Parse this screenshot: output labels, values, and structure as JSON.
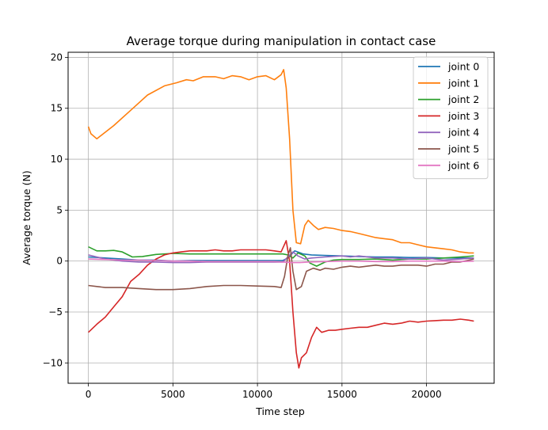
{
  "chart_data": {
    "type": "line",
    "title": "Average torque during manipulation in contact case",
    "xlabel": "Time step",
    "ylabel": "Average torque (N)",
    "xlim": [
      -1200,
      24000
    ],
    "ylim": [
      -12,
      20.5
    ],
    "xticks": [
      0,
      5000,
      10000,
      15000,
      20000
    ],
    "yticks": [
      -10,
      -5,
      0,
      5,
      10,
      15,
      20
    ],
    "xtick_labels": [
      "0",
      "5000",
      "10000",
      "15000",
      "20000"
    ],
    "ytick_labels": [
      "−10",
      "−5",
      "0",
      "5",
      "10",
      "15",
      "20"
    ],
    "grid": true,
    "legend_position": "top-right",
    "series": [
      {
        "name": "joint 0",
        "color": "#1f77b4",
        "points": [
          [
            0,
            0.4
          ],
          [
            1000,
            0.3
          ],
          [
            2000,
            0.2
          ],
          [
            3000,
            0.1
          ],
          [
            4000,
            0.1
          ],
          [
            5000,
            0.0
          ],
          [
            6000,
            0.05
          ],
          [
            7000,
            0.05
          ],
          [
            8000,
            0.05
          ],
          [
            9000,
            0.05
          ],
          [
            10000,
            0.05
          ],
          [
            11000,
            0.05
          ],
          [
            11500,
            0.05
          ],
          [
            11800,
            0.3
          ],
          [
            12200,
            1.0
          ],
          [
            12700,
            0.7
          ],
          [
            13200,
            0.6
          ],
          [
            14000,
            0.55
          ],
          [
            15000,
            0.5
          ],
          [
            16000,
            0.45
          ],
          [
            17000,
            0.4
          ],
          [
            18000,
            0.4
          ],
          [
            19000,
            0.35
          ],
          [
            20000,
            0.35
          ],
          [
            21000,
            0.3
          ],
          [
            22000,
            0.3
          ],
          [
            22800,
            0.3
          ]
        ]
      },
      {
        "name": "joint 1",
        "color": "#ff7f0e",
        "points": [
          [
            0,
            13.2
          ],
          [
            150,
            12.5
          ],
          [
            500,
            12.0
          ],
          [
            800,
            12.4
          ],
          [
            1500,
            13.3
          ],
          [
            2500,
            14.8
          ],
          [
            3500,
            16.3
          ],
          [
            4500,
            17.2
          ],
          [
            5200,
            17.5
          ],
          [
            5800,
            17.8
          ],
          [
            6200,
            17.7
          ],
          [
            6800,
            18.1
          ],
          [
            7500,
            18.1
          ],
          [
            8000,
            17.9
          ],
          [
            8500,
            18.2
          ],
          [
            9000,
            18.1
          ],
          [
            9500,
            17.8
          ],
          [
            10000,
            18.1
          ],
          [
            10500,
            18.2
          ],
          [
            11000,
            17.8
          ],
          [
            11400,
            18.3
          ],
          [
            11550,
            18.8
          ],
          [
            11700,
            17.0
          ],
          [
            11900,
            12.0
          ],
          [
            12100,
            5.0
          ],
          [
            12300,
            1.8
          ],
          [
            12550,
            1.7
          ],
          [
            12800,
            3.5
          ],
          [
            13000,
            4.0
          ],
          [
            13300,
            3.5
          ],
          [
            13600,
            3.1
          ],
          [
            14000,
            3.3
          ],
          [
            14500,
            3.2
          ],
          [
            15000,
            3.0
          ],
          [
            15500,
            2.9
          ],
          [
            16000,
            2.7
          ],
          [
            16500,
            2.5
          ],
          [
            17000,
            2.3
          ],
          [
            17500,
            2.2
          ],
          [
            18000,
            2.1
          ],
          [
            18500,
            1.8
          ],
          [
            19000,
            1.8
          ],
          [
            19500,
            1.6
          ],
          [
            20000,
            1.4
          ],
          [
            20500,
            1.3
          ],
          [
            21000,
            1.2
          ],
          [
            21500,
            1.1
          ],
          [
            22000,
            0.9
          ],
          [
            22500,
            0.8
          ],
          [
            22800,
            0.8
          ]
        ]
      },
      {
        "name": "joint 2",
        "color": "#2ca02c",
        "points": [
          [
            0,
            1.4
          ],
          [
            500,
            1.0
          ],
          [
            1000,
            1.0
          ],
          [
            1500,
            1.05
          ],
          [
            2000,
            0.9
          ],
          [
            2600,
            0.4
          ],
          [
            3200,
            0.45
          ],
          [
            4000,
            0.65
          ],
          [
            5000,
            0.75
          ],
          [
            6000,
            0.7
          ],
          [
            7000,
            0.7
          ],
          [
            8000,
            0.7
          ],
          [
            9000,
            0.7
          ],
          [
            10000,
            0.7
          ],
          [
            11000,
            0.7
          ],
          [
            11500,
            0.7
          ],
          [
            11800,
            0.6
          ],
          [
            12100,
            0.3
          ],
          [
            12400,
            0.8
          ],
          [
            12800,
            0.5
          ],
          [
            13100,
            -0.2
          ],
          [
            13500,
            -0.5
          ],
          [
            14000,
            -0.1
          ],
          [
            14500,
            0.1
          ],
          [
            15000,
            0.15
          ],
          [
            16000,
            0.15
          ],
          [
            17000,
            0.2
          ],
          [
            18000,
            0.1
          ],
          [
            19000,
            0.2
          ],
          [
            20000,
            0.2
          ],
          [
            21000,
            0.3
          ],
          [
            22000,
            0.4
          ],
          [
            22800,
            0.5
          ]
        ]
      },
      {
        "name": "joint 3",
        "color": "#d62728",
        "points": [
          [
            0,
            -7.0
          ],
          [
            500,
            -6.2
          ],
          [
            1000,
            -5.5
          ],
          [
            1500,
            -4.5
          ],
          [
            2000,
            -3.5
          ],
          [
            2500,
            -2.0
          ],
          [
            3000,
            -1.3
          ],
          [
            3500,
            -0.4
          ],
          [
            4000,
            0.2
          ],
          [
            4500,
            0.6
          ],
          [
            5000,
            0.8
          ],
          [
            5500,
            0.9
          ],
          [
            6000,
            1.0
          ],
          [
            6500,
            1.0
          ],
          [
            7000,
            1.0
          ],
          [
            7500,
            1.1
          ],
          [
            8000,
            1.0
          ],
          [
            8500,
            1.0
          ],
          [
            9000,
            1.1
          ],
          [
            9500,
            1.1
          ],
          [
            10000,
            1.1
          ],
          [
            10500,
            1.1
          ],
          [
            11000,
            1.0
          ],
          [
            11400,
            0.9
          ],
          [
            11700,
            2.0
          ],
          [
            11900,
            0.0
          ],
          [
            12100,
            -5.0
          ],
          [
            12300,
            -9.0
          ],
          [
            12450,
            -10.5
          ],
          [
            12600,
            -9.5
          ],
          [
            12900,
            -9.0
          ],
          [
            13200,
            -7.5
          ],
          [
            13500,
            -6.5
          ],
          [
            13800,
            -7.0
          ],
          [
            14200,
            -6.8
          ],
          [
            14600,
            -6.8
          ],
          [
            15000,
            -6.7
          ],
          [
            15500,
            -6.6
          ],
          [
            16000,
            -6.5
          ],
          [
            16500,
            -6.5
          ],
          [
            17000,
            -6.3
          ],
          [
            17500,
            -6.1
          ],
          [
            18000,
            -6.2
          ],
          [
            18500,
            -6.1
          ],
          [
            19000,
            -5.9
          ],
          [
            19500,
            -6.0
          ],
          [
            20000,
            -5.9
          ],
          [
            20500,
            -5.85
          ],
          [
            21000,
            -5.8
          ],
          [
            21500,
            -5.8
          ],
          [
            22000,
            -5.7
          ],
          [
            22500,
            -5.8
          ],
          [
            22800,
            -5.9
          ]
        ]
      },
      {
        "name": "joint 4",
        "color": "#9467bd",
        "points": [
          [
            0,
            0.6
          ],
          [
            500,
            0.4
          ],
          [
            1000,
            0.2
          ],
          [
            2000,
            0.0
          ],
          [
            3000,
            -0.1
          ],
          [
            4000,
            -0.1
          ],
          [
            5000,
            -0.15
          ],
          [
            6000,
            -0.15
          ],
          [
            7000,
            -0.1
          ],
          [
            8000,
            -0.1
          ],
          [
            9000,
            -0.1
          ],
          [
            10000,
            -0.1
          ],
          [
            11000,
            -0.1
          ],
          [
            11500,
            -0.1
          ],
          [
            11800,
            0.4
          ],
          [
            12100,
            0.9
          ],
          [
            12400,
            0.5
          ],
          [
            12800,
            0.2
          ],
          [
            13200,
            0.3
          ],
          [
            14000,
            0.4
          ],
          [
            15000,
            0.5
          ],
          [
            15500,
            0.4
          ],
          [
            16000,
            0.5
          ],
          [
            17000,
            0.3
          ],
          [
            18000,
            0.3
          ],
          [
            19000,
            0.2
          ],
          [
            20000,
            0.3
          ],
          [
            21000,
            0.1
          ],
          [
            22000,
            0.2
          ],
          [
            22800,
            0.3
          ]
        ]
      },
      {
        "name": "joint 5",
        "color": "#8c564b",
        "points": [
          [
            0,
            -2.4
          ],
          [
            500,
            -2.5
          ],
          [
            1000,
            -2.6
          ],
          [
            2000,
            -2.6
          ],
          [
            3000,
            -2.7
          ],
          [
            4000,
            -2.8
          ],
          [
            5000,
            -2.8
          ],
          [
            6000,
            -2.7
          ],
          [
            7000,
            -2.5
          ],
          [
            8000,
            -2.4
          ],
          [
            9000,
            -2.4
          ],
          [
            10000,
            -2.45
          ],
          [
            11000,
            -2.5
          ],
          [
            11400,
            -2.6
          ],
          [
            11600,
            -1.5
          ],
          [
            11800,
            0.5
          ],
          [
            11950,
            1.3
          ],
          [
            12100,
            -1.0
          ],
          [
            12300,
            -2.8
          ],
          [
            12600,
            -2.5
          ],
          [
            12900,
            -1.0
          ],
          [
            13300,
            -0.7
          ],
          [
            13700,
            -0.9
          ],
          [
            14000,
            -0.7
          ],
          [
            14500,
            -0.8
          ],
          [
            15000,
            -0.6
          ],
          [
            15500,
            -0.5
          ],
          [
            16000,
            -0.6
          ],
          [
            16500,
            -0.5
          ],
          [
            17000,
            -0.4
          ],
          [
            17500,
            -0.5
          ],
          [
            18000,
            -0.5
          ],
          [
            18500,
            -0.4
          ],
          [
            19000,
            -0.4
          ],
          [
            19500,
            -0.4
          ],
          [
            20000,
            -0.5
          ],
          [
            20500,
            -0.3
          ],
          [
            21000,
            -0.3
          ],
          [
            21500,
            -0.1
          ],
          [
            22000,
            -0.1
          ],
          [
            22800,
            0.2
          ]
        ]
      },
      {
        "name": "joint 6",
        "color": "#e377c2",
        "points": [
          [
            0,
            0.2
          ],
          [
            1000,
            0.15
          ],
          [
            2000,
            0.1
          ],
          [
            3000,
            0.1
          ],
          [
            4000,
            0.05
          ],
          [
            5000,
            0.0
          ],
          [
            6000,
            0.0
          ],
          [
            7000,
            -0.05
          ],
          [
            8000,
            -0.05
          ],
          [
            9000,
            -0.05
          ],
          [
            10000,
            -0.05
          ],
          [
            11000,
            -0.05
          ],
          [
            11500,
            -0.1
          ],
          [
            12000,
            -0.15
          ],
          [
            12500,
            -0.15
          ],
          [
            13000,
            -0.1
          ],
          [
            14000,
            -0.05
          ],
          [
            15000,
            0.0
          ],
          [
            16000,
            0.0
          ],
          [
            17000,
            -0.05
          ],
          [
            18000,
            -0.05
          ],
          [
            19000,
            0.0
          ],
          [
            20000,
            0.0
          ],
          [
            21000,
            0.0
          ],
          [
            22000,
            -0.05
          ],
          [
            22800,
            0.0
          ]
        ]
      }
    ]
  }
}
